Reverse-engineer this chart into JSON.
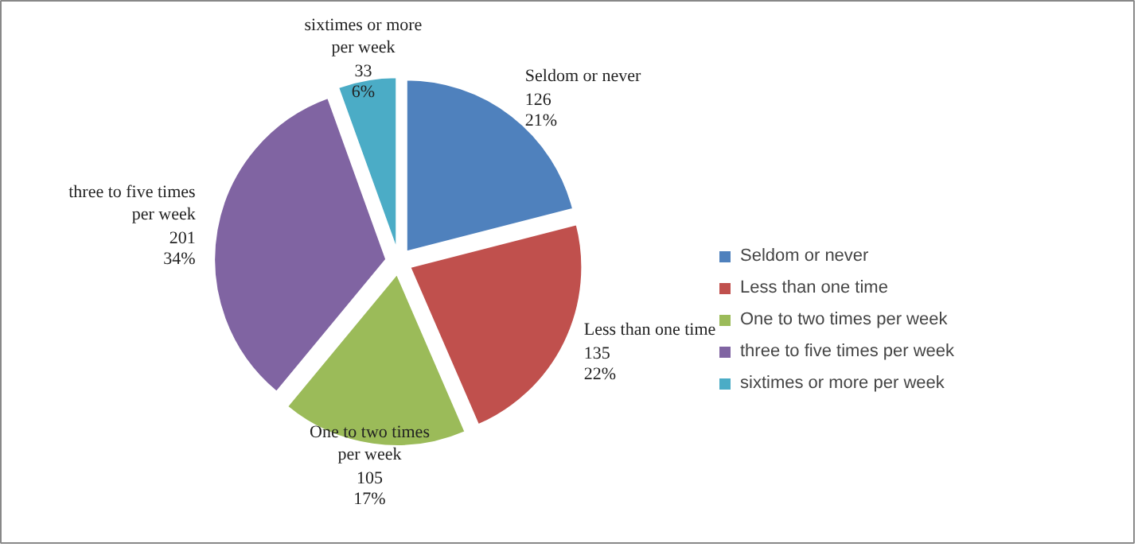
{
  "chart_data": {
    "type": "pie",
    "categories": [
      "Seldom or never",
      "Less than one time",
      "One to two times per week",
      "three to five times per week",
      "sixtimes or more per week"
    ],
    "values": [
      126,
      135,
      105,
      201,
      33
    ],
    "value_labels": [
      "126\n21%",
      "135\n22%",
      "105\n17%",
      "201\n34%",
      "33\n6%"
    ],
    "colors": [
      "#4f81bd",
      "#c0504d",
      "#9bbb59",
      "#8064a2",
      "#4bacc6"
    ],
    "legend": "right"
  }
}
